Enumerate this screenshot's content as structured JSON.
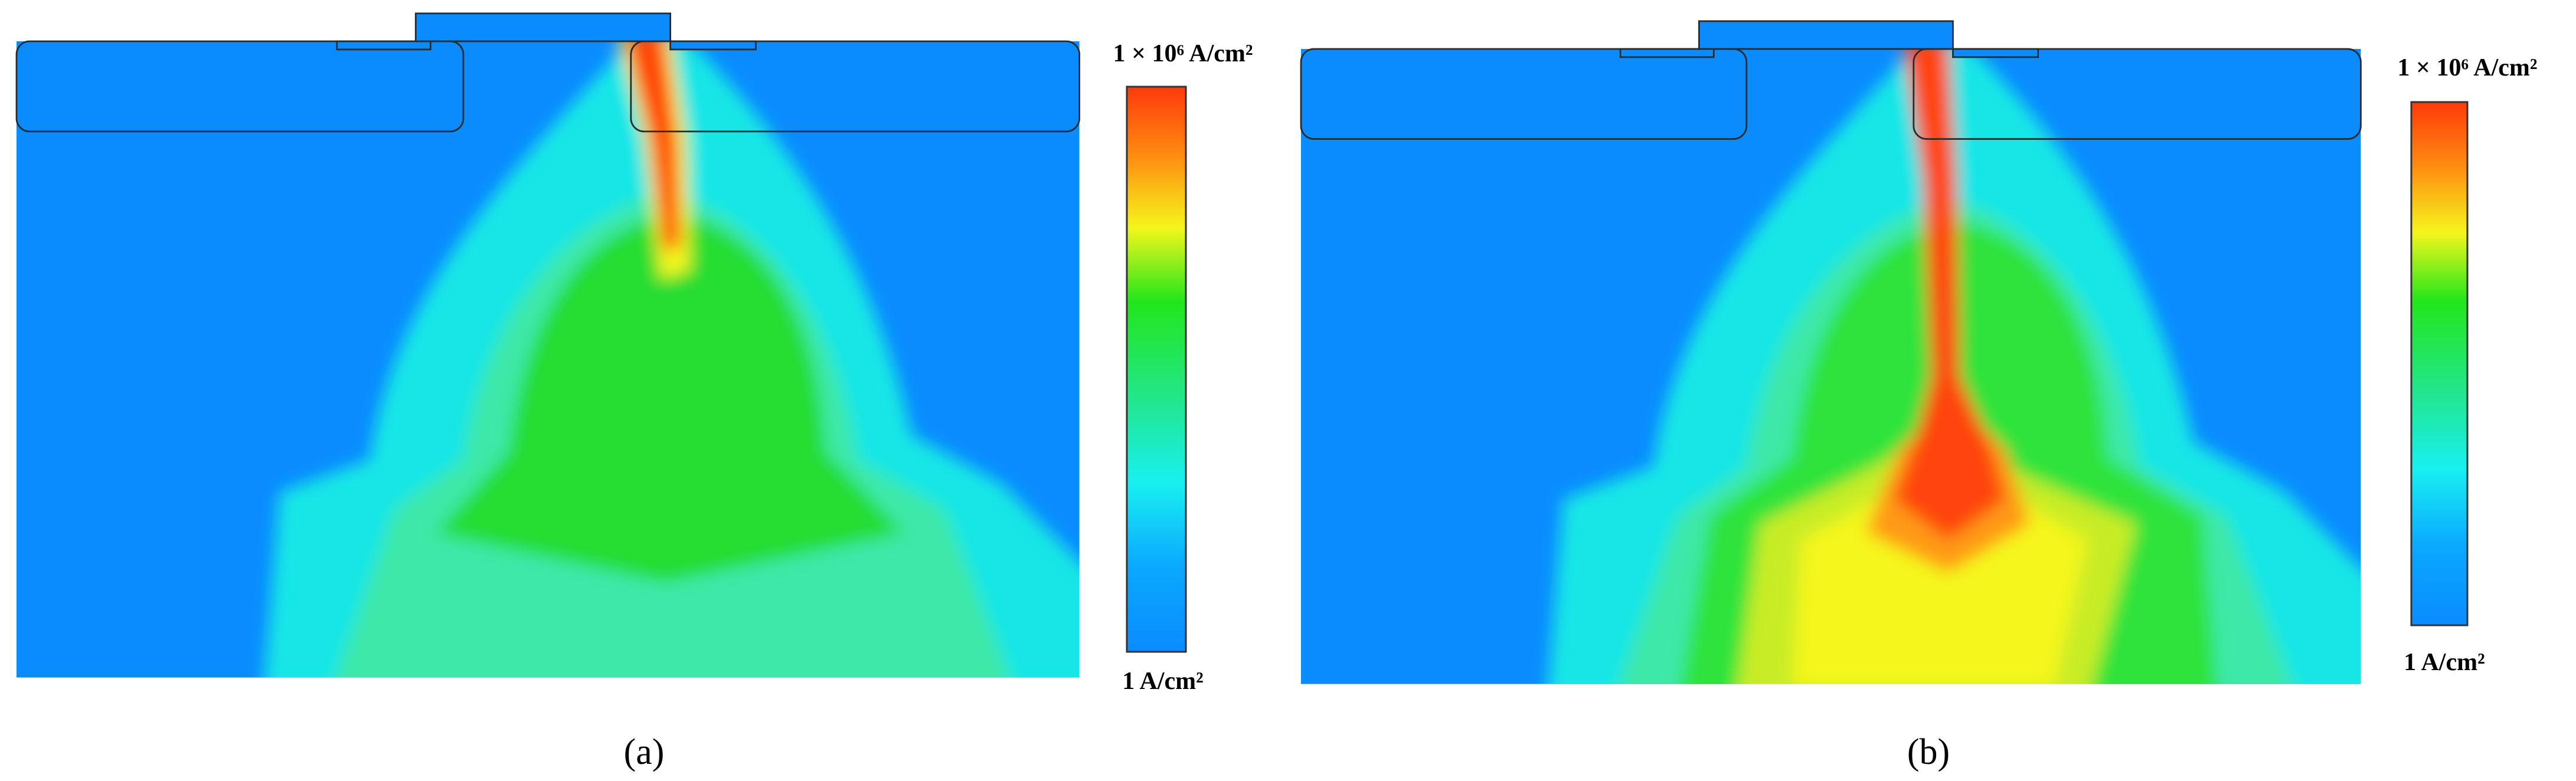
{
  "panels": [
    {
      "label": "(a)",
      "colorbar": {
        "max_label": "1 × 10⁶ A/cm²",
        "min_label": "1 A/cm²"
      }
    },
    {
      "label": "(b)",
      "colorbar": {
        "max_label": "1 × 10⁶ A/cm²",
        "min_label": "1 A/cm²"
      }
    }
  ]
}
